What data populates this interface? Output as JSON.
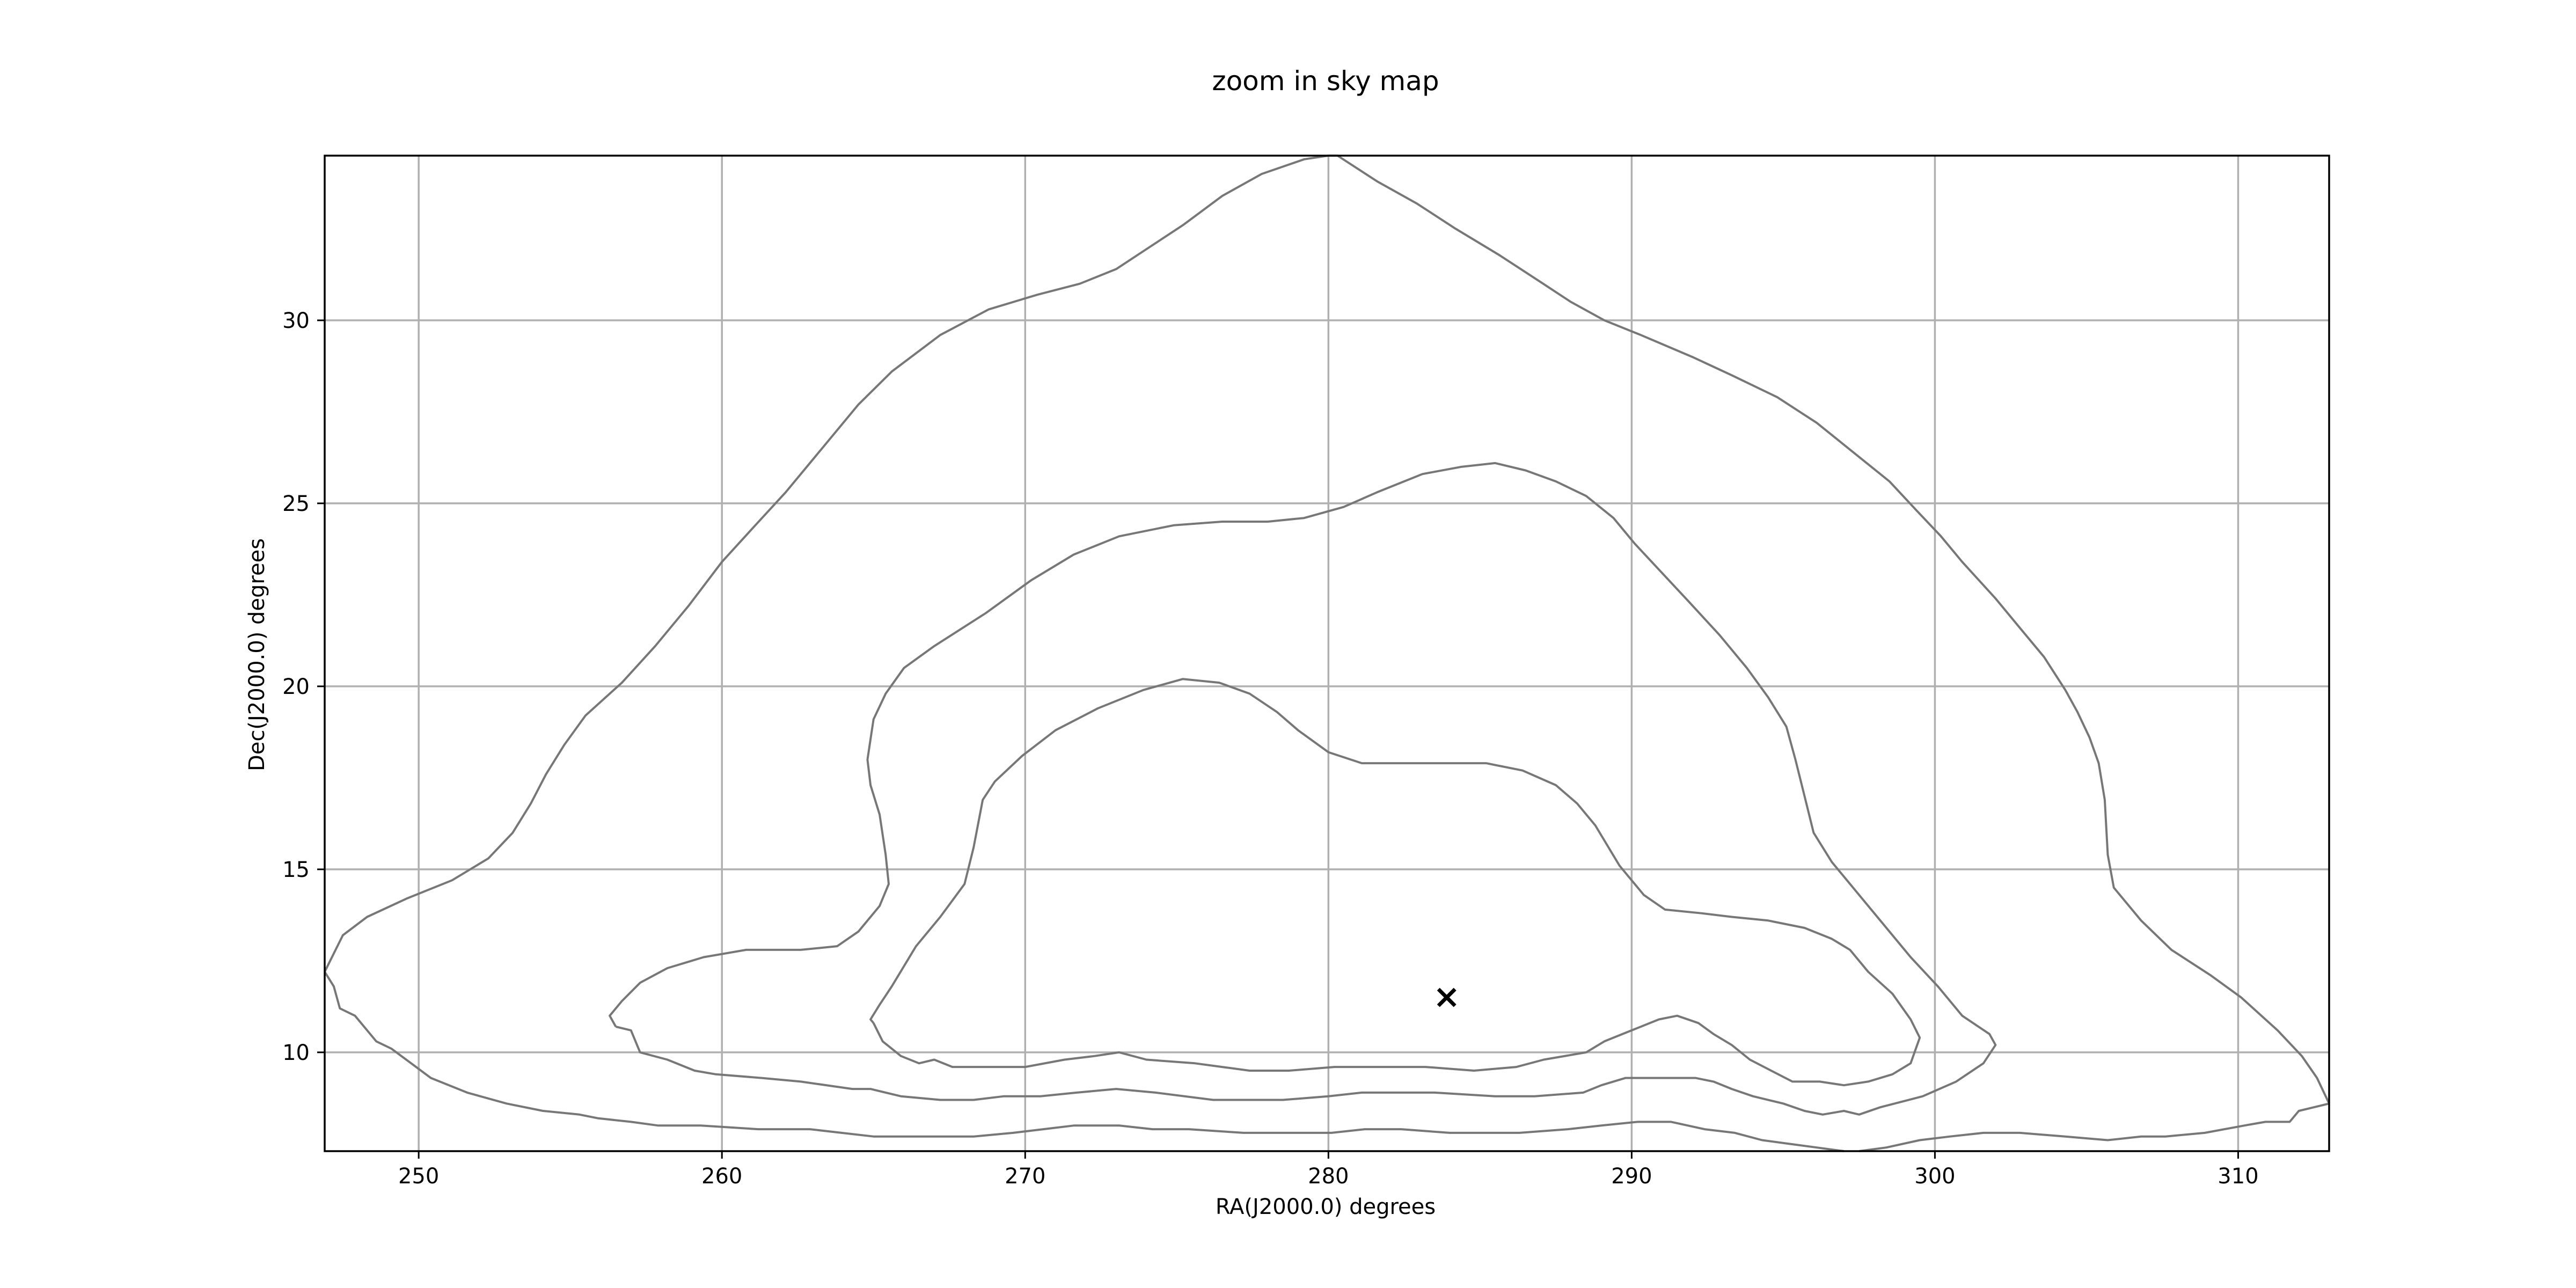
{
  "chart_data": {
    "type": "line",
    "title": "zoom in sky map",
    "xlabel": "RA(J2000.0) degrees",
    "ylabel": "Dec(J2000.0) degrees",
    "xlim": [
      246.9,
      313.0
    ],
    "ylim": [
      7.3,
      34.5
    ],
    "xticks": [
      250,
      260,
      270,
      280,
      290,
      300,
      310
    ],
    "yticks": [
      10,
      15,
      20,
      25,
      30
    ],
    "grid": true,
    "line_color": "#777777",
    "marker": {
      "x": 283.9,
      "y": 11.5,
      "symbol": "x"
    },
    "series": [
      {
        "points": [
          [
            246.9,
            12.2
          ],
          [
            247.2,
            11.8
          ],
          [
            247.4,
            11.2
          ],
          [
            247.9,
            11.0
          ],
          [
            248.3,
            10.6
          ],
          [
            248.6,
            10.3
          ],
          [
            249.1,
            10.1
          ],
          [
            250.4,
            9.3
          ],
          [
            251.6,
            8.9
          ],
          [
            252.9,
            8.6
          ],
          [
            254.1,
            8.4
          ],
          [
            255.3,
            8.3
          ],
          [
            255.9,
            8.2
          ],
          [
            257.0,
            8.1
          ],
          [
            257.9,
            8.0
          ],
          [
            259.3,
            8.0
          ],
          [
            261.2,
            7.9
          ],
          [
            262.9,
            7.9
          ],
          [
            265.0,
            7.7
          ],
          [
            266.3,
            7.7
          ],
          [
            268.3,
            7.7
          ],
          [
            269.6,
            7.8
          ],
          [
            270.6,
            7.9
          ],
          [
            271.6,
            8.0
          ],
          [
            273.1,
            8.0
          ],
          [
            274.2,
            7.9
          ],
          [
            275.4,
            7.9
          ],
          [
            277.2,
            7.8
          ],
          [
            278.2,
            7.8
          ],
          [
            280.1,
            7.8
          ],
          [
            281.2,
            7.9
          ],
          [
            282.4,
            7.9
          ],
          [
            284.0,
            7.8
          ],
          [
            285.1,
            7.8
          ],
          [
            286.3,
            7.8
          ],
          [
            287.9,
            7.9
          ],
          [
            289.0,
            8.0
          ],
          [
            290.2,
            8.1
          ],
          [
            291.3,
            8.1
          ],
          [
            292.4,
            7.9
          ],
          [
            293.4,
            7.8
          ],
          [
            294.3,
            7.6
          ],
          [
            295.2,
            7.5
          ],
          [
            296.1,
            7.4
          ],
          [
            297.0,
            7.3
          ]
        ]
      },
      {
        "points": [
          [
            297.5,
            7.3
          ],
          [
            298.4,
            7.4
          ],
          [
            299.5,
            7.6
          ],
          [
            300.5,
            7.7
          ],
          [
            301.6,
            7.8
          ],
          [
            302.8,
            7.8
          ],
          [
            304.3,
            7.7
          ],
          [
            305.7,
            7.6
          ],
          [
            306.8,
            7.7
          ],
          [
            307.6,
            7.7
          ],
          [
            308.9,
            7.8
          ],
          [
            310.2,
            8.0
          ],
          [
            310.9,
            8.1
          ],
          [
            311.7,
            8.1
          ],
          [
            312.0,
            8.4
          ],
          [
            312.5,
            8.5
          ],
          [
            313.0,
            8.6
          ]
        ]
      },
      {
        "points": [
          [
            313.0,
            8.6
          ],
          [
            312.6,
            9.3
          ],
          [
            312.1,
            9.9
          ],
          [
            311.3,
            10.6
          ],
          [
            310.1,
            11.5
          ],
          [
            309.1,
            12.1
          ],
          [
            307.8,
            12.8
          ],
          [
            306.8,
            13.6
          ],
          [
            305.9,
            14.5
          ],
          [
            305.7,
            15.4
          ],
          [
            305.6,
            16.9
          ],
          [
            305.4,
            17.9
          ],
          [
            305.1,
            18.6
          ],
          [
            304.7,
            19.3
          ],
          [
            304.3,
            19.9
          ],
          [
            303.6,
            20.8
          ],
          [
            302.8,
            21.6
          ],
          [
            302.0,
            22.4
          ],
          [
            300.9,
            23.4
          ],
          [
            300.2,
            24.1
          ],
          [
            299.4,
            24.8
          ],
          [
            298.5,
            25.6
          ],
          [
            297.3,
            26.4
          ],
          [
            296.1,
            27.2
          ],
          [
            294.8,
            27.9
          ],
          [
            293.3,
            28.5
          ],
          [
            292.0,
            29.0
          ],
          [
            290.3,
            29.6
          ],
          [
            289.1,
            30.0
          ],
          [
            288.0,
            30.5
          ],
          [
            286.9,
            31.1
          ],
          [
            285.6,
            31.8
          ],
          [
            284.2,
            32.5
          ],
          [
            282.9,
            33.2
          ],
          [
            281.6,
            33.8
          ],
          [
            280.3,
            34.5
          ],
          [
            280.0,
            34.5
          ]
        ]
      },
      {
        "points": [
          [
            280.0,
            34.5
          ],
          [
            279.2,
            34.4
          ],
          [
            277.8,
            34.0
          ],
          [
            276.5,
            33.4
          ],
          [
            275.2,
            32.6
          ],
          [
            274.1,
            32.0
          ],
          [
            273.0,
            31.4
          ],
          [
            271.8,
            31.0
          ],
          [
            270.4,
            30.7
          ],
          [
            268.8,
            30.3
          ],
          [
            267.2,
            29.6
          ],
          [
            265.6,
            28.6
          ],
          [
            264.5,
            27.7
          ],
          [
            263.3,
            26.5
          ],
          [
            262.1,
            25.3
          ],
          [
            261.1,
            24.4
          ],
          [
            260.0,
            23.4
          ],
          [
            258.9,
            22.2
          ],
          [
            257.8,
            21.1
          ],
          [
            256.7,
            20.1
          ],
          [
            255.5,
            19.2
          ],
          [
            254.8,
            18.4
          ],
          [
            254.2,
            17.6
          ],
          [
            253.7,
            16.8
          ],
          [
            253.1,
            16.0
          ],
          [
            252.3,
            15.3
          ],
          [
            251.1,
            14.7
          ],
          [
            249.6,
            14.2
          ],
          [
            248.3,
            13.7
          ],
          [
            247.5,
            13.2
          ],
          [
            246.9,
            12.2
          ]
        ]
      },
      {
        "points": [
          [
            256.5,
            10.7
          ],
          [
            257.0,
            10.6
          ],
          [
            257.3,
            10.0
          ],
          [
            258.2,
            9.8
          ],
          [
            259.1,
            9.5
          ],
          [
            259.8,
            9.4
          ],
          [
            261.3,
            9.3
          ],
          [
            262.6,
            9.2
          ],
          [
            264.3,
            9.0
          ],
          [
            264.9,
            9.0
          ],
          [
            265.9,
            8.8
          ],
          [
            267.2,
            8.7
          ],
          [
            268.3,
            8.7
          ],
          [
            269.3,
            8.8
          ],
          [
            270.5,
            8.8
          ],
          [
            271.7,
            8.9
          ],
          [
            273.0,
            9.0
          ],
          [
            274.3,
            8.9
          ],
          [
            276.2,
            8.7
          ],
          [
            277.3,
            8.7
          ],
          [
            278.5,
            8.7
          ],
          [
            280.0,
            8.8
          ],
          [
            281.1,
            8.9
          ],
          [
            282.1,
            8.9
          ],
          [
            283.5,
            8.9
          ],
          [
            285.5,
            8.8
          ],
          [
            286.8,
            8.8
          ],
          [
            288.4,
            8.9
          ],
          [
            289.0,
            9.1
          ],
          [
            289.8,
            9.3
          ],
          [
            290.5,
            9.3
          ],
          [
            291.2,
            9.3
          ],
          [
            292.1,
            9.3
          ],
          [
            292.7,
            9.2
          ],
          [
            293.3,
            9.0
          ],
          [
            294.0,
            8.8
          ],
          [
            295.0,
            8.6
          ],
          [
            295.7,
            8.4
          ],
          [
            296.3,
            8.3
          ],
          [
            297.0,
            8.4
          ],
          [
            297.5,
            8.3
          ],
          [
            298.2,
            8.5
          ],
          [
            299.6,
            8.8
          ],
          [
            300.7,
            9.2
          ],
          [
            301.6,
            9.7
          ],
          [
            302.0,
            10.2
          ],
          [
            301.8,
            10.5
          ],
          [
            300.9,
            11.0
          ],
          [
            300.1,
            11.8
          ],
          [
            299.2,
            12.6
          ],
          [
            298.3,
            13.5
          ],
          [
            297.5,
            14.3
          ],
          [
            296.6,
            15.2
          ],
          [
            296.0,
            16.0
          ],
          [
            295.7,
            17.0
          ],
          [
            295.4,
            18.0
          ],
          [
            295.1,
            18.9
          ],
          [
            294.5,
            19.7
          ],
          [
            293.8,
            20.5
          ],
          [
            292.9,
            21.4
          ],
          [
            291.9,
            22.3
          ],
          [
            291.0,
            23.1
          ],
          [
            290.1,
            23.9
          ],
          [
            289.4,
            24.6
          ],
          [
            288.5,
            25.2
          ],
          [
            287.5,
            25.6
          ],
          [
            286.5,
            25.9
          ],
          [
            285.5,
            26.1
          ],
          [
            284.4,
            26.0
          ],
          [
            283.1,
            25.8
          ],
          [
            281.6,
            25.3
          ],
          [
            280.5,
            24.9
          ],
          [
            279.2,
            24.6
          ],
          [
            278.0,
            24.5
          ],
          [
            276.5,
            24.5
          ],
          [
            274.9,
            24.4
          ],
          [
            273.1,
            24.1
          ],
          [
            271.6,
            23.6
          ],
          [
            270.2,
            22.9
          ],
          [
            268.7,
            22.0
          ],
          [
            267.0,
            21.1
          ],
          [
            266.0,
            20.5
          ],
          [
            265.4,
            19.8
          ],
          [
            265.0,
            19.1
          ],
          [
            264.8,
            18.0
          ],
          [
            264.9,
            17.3
          ],
          [
            265.2,
            16.5
          ],
          [
            265.4,
            15.4
          ],
          [
            265.5,
            14.6
          ],
          [
            265.2,
            14.0
          ],
          [
            264.5,
            13.3
          ],
          [
            263.8,
            12.9
          ],
          [
            262.6,
            12.8
          ],
          [
            260.8,
            12.8
          ],
          [
            259.4,
            12.6
          ],
          [
            258.2,
            12.3
          ],
          [
            257.3,
            11.9
          ],
          [
            256.7,
            11.4
          ],
          [
            256.3,
            11.0
          ],
          [
            256.5,
            10.7
          ]
        ]
      },
      {
        "points": [
          [
            265.0,
            10.8
          ],
          [
            265.3,
            10.3
          ],
          [
            265.9,
            9.9
          ],
          [
            266.5,
            9.7
          ],
          [
            267.0,
            9.8
          ],
          [
            267.6,
            9.6
          ],
          [
            268.8,
            9.6
          ],
          [
            270.0,
            9.6
          ],
          [
            271.3,
            9.8
          ],
          [
            272.3,
            9.9
          ],
          [
            273.1,
            10.0
          ],
          [
            274.0,
            9.8
          ],
          [
            275.6,
            9.7
          ],
          [
            277.4,
            9.5
          ],
          [
            278.7,
            9.5
          ],
          [
            280.2,
            9.6
          ],
          [
            281.5,
            9.6
          ],
          [
            283.2,
            9.6
          ],
          [
            284.8,
            9.5
          ],
          [
            286.2,
            9.6
          ],
          [
            287.1,
            9.8
          ],
          [
            288.5,
            10.0
          ],
          [
            289.1,
            10.3
          ],
          [
            290.0,
            10.6
          ],
          [
            290.9,
            10.9
          ],
          [
            291.5,
            11.0
          ],
          [
            292.2,
            10.8
          ],
          [
            292.7,
            10.5
          ],
          [
            293.3,
            10.2
          ],
          [
            293.9,
            9.8
          ],
          [
            294.6,
            9.5
          ],
          [
            295.3,
            9.2
          ],
          [
            296.2,
            9.2
          ],
          [
            297.0,
            9.1
          ],
          [
            297.8,
            9.2
          ],
          [
            298.6,
            9.4
          ],
          [
            299.2,
            9.7
          ],
          [
            299.5,
            10.4
          ],
          [
            299.2,
            10.9
          ],
          [
            298.6,
            11.6
          ],
          [
            297.8,
            12.2
          ],
          [
            297.2,
            12.8
          ],
          [
            296.6,
            13.1
          ],
          [
            295.7,
            13.4
          ],
          [
            294.5,
            13.6
          ],
          [
            293.3,
            13.7
          ],
          [
            292.3,
            13.8
          ],
          [
            291.1,
            13.9
          ],
          [
            290.4,
            14.3
          ],
          [
            289.6,
            15.1
          ],
          [
            288.8,
            16.2
          ],
          [
            288.2,
            16.8
          ],
          [
            287.5,
            17.3
          ],
          [
            286.4,
            17.7
          ],
          [
            285.2,
            17.9
          ],
          [
            283.6,
            17.9
          ],
          [
            282.4,
            17.9
          ],
          [
            281.1,
            17.9
          ],
          [
            280.0,
            18.2
          ],
          [
            279.0,
            18.8
          ],
          [
            278.3,
            19.3
          ],
          [
            277.4,
            19.8
          ],
          [
            276.4,
            20.1
          ],
          [
            275.2,
            20.2
          ],
          [
            273.9,
            19.9
          ],
          [
            272.4,
            19.4
          ],
          [
            271.0,
            18.8
          ],
          [
            269.9,
            18.1
          ],
          [
            269.0,
            17.4
          ],
          [
            268.6,
            16.9
          ],
          [
            268.3,
            15.6
          ],
          [
            268.0,
            14.6
          ],
          [
            267.2,
            13.7
          ],
          [
            266.4,
            12.9
          ],
          [
            265.6,
            11.8
          ],
          [
            265.2,
            11.3
          ],
          [
            264.9,
            10.9
          ],
          [
            265.0,
            10.8
          ]
        ]
      }
    ]
  }
}
